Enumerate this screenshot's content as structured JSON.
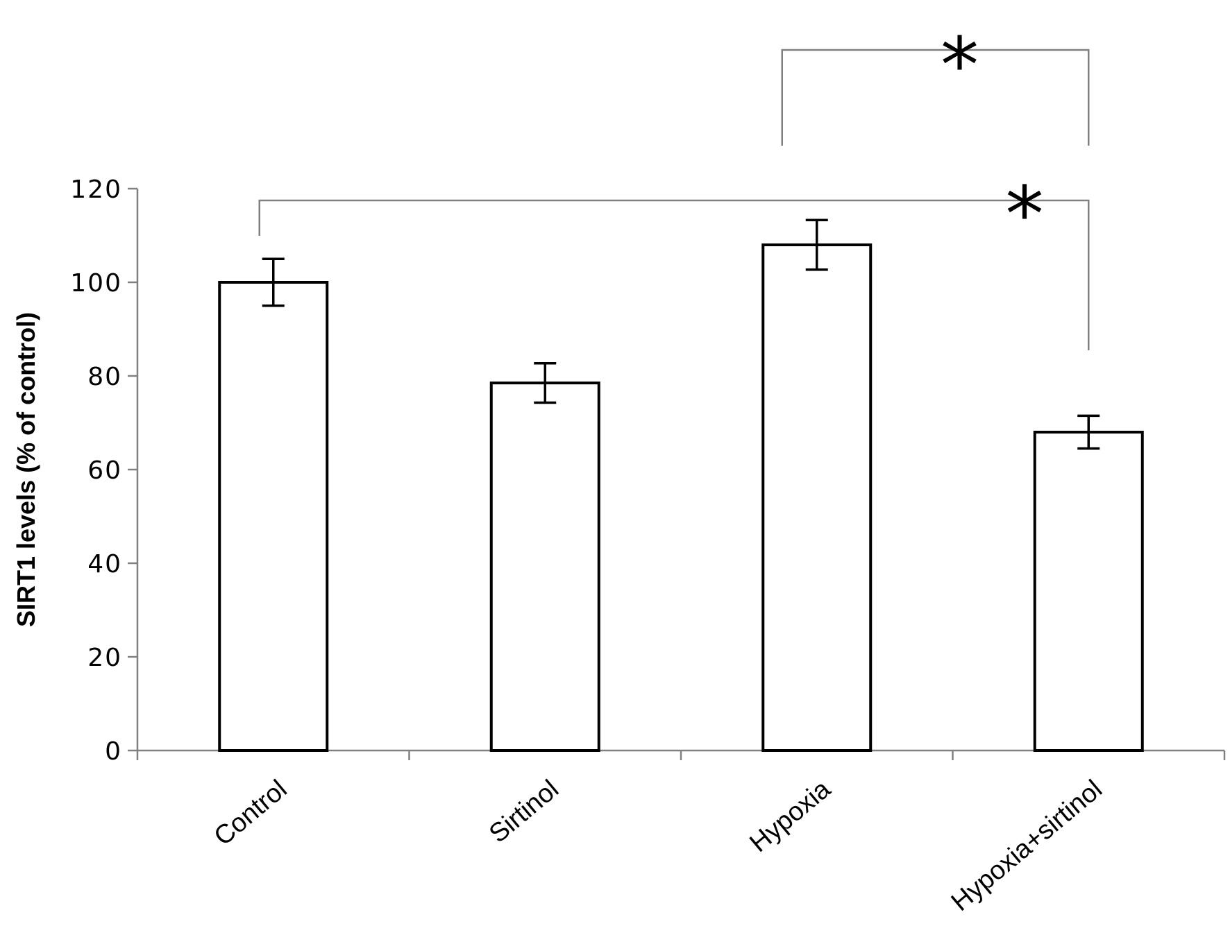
{
  "chart_data": {
    "type": "bar",
    "title": "",
    "xlabel": "",
    "ylabel": "SIRT1 levels (% of control)",
    "categories": [
      "Control",
      "Sirtinol",
      "Hypoxia",
      "Hypoxia+sirtinol"
    ],
    "values": [
      100,
      78.5,
      108,
      68
    ],
    "errors": [
      5,
      4.2,
      5.3,
      3.5
    ],
    "ylim": [
      0,
      120
    ],
    "yticks": [
      "0",
      "20",
      "40",
      "60",
      "80",
      "100",
      "120"
    ],
    "bar_fill": "#ffffff",
    "bar_stroke": "#000000",
    "grid": false,
    "legend": "none",
    "significance": [
      {
        "from": "Hypoxia",
        "to": "Hypoxia+sirtinol",
        "label": "*"
      },
      {
        "from": "Control",
        "to": "Hypoxia+sirtinol",
        "label": "*"
      }
    ]
  }
}
